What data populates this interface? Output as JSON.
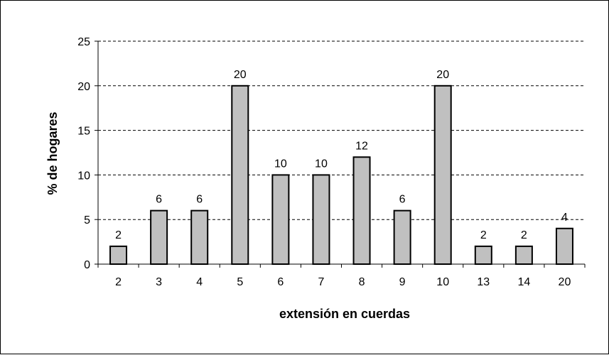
{
  "chart_data": {
    "type": "bar",
    "title": "",
    "xlabel": "extensión en cuerdas",
    "ylabel": "% de hogares",
    "categories": [
      "2",
      "3",
      "4",
      "5",
      "6",
      "7",
      "8",
      "9",
      "10",
      "13",
      "14",
      "20"
    ],
    "values": [
      2,
      6,
      6,
      20,
      10,
      10,
      12,
      6,
      20,
      2,
      2,
      4
    ],
    "data_labels": [
      "2",
      "6",
      "6",
      "20",
      "10",
      "10",
      "12",
      "6",
      "20",
      "2",
      "2",
      "4"
    ],
    "ylim": [
      0,
      25
    ],
    "yticks": [
      "0",
      "5",
      "10",
      "15",
      "20",
      "25"
    ],
    "grid": "horizontal dashed",
    "legend": "none",
    "bar_color": "#c0c0c0",
    "bar_border_color": "#000000"
  }
}
